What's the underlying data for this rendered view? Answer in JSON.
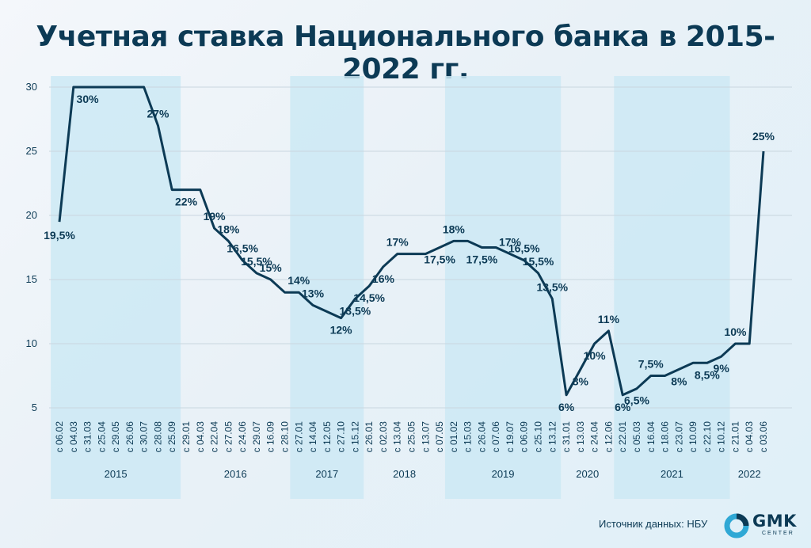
{
  "chart_data": {
    "type": "line",
    "title": "Учетная ставка Национального банка в 2015-2022 гг.",
    "ylim": [
      3,
      32
    ],
    "yticks": [
      5,
      10,
      15,
      20,
      25,
      30
    ],
    "grid": "horizontal",
    "points": [
      {
        "x": "с 06.02",
        "y": 19.5,
        "label": "19,5%"
      },
      {
        "x": "с 04.03",
        "y": 30,
        "label": ""
      },
      {
        "x": "с 31.03",
        "y": 30,
        "label": "30%"
      },
      {
        "x": "с 25.04",
        "y": 30,
        "label": ""
      },
      {
        "x": "с 29.05",
        "y": 30,
        "label": ""
      },
      {
        "x": "с 26.06",
        "y": 30,
        "label": ""
      },
      {
        "x": "с 30.07",
        "y": 30,
        "label": ""
      },
      {
        "x": "с 28.08",
        "y": 27,
        "label": "27%"
      },
      {
        "x": "с 25.09",
        "y": 22,
        "label": ""
      },
      {
        "x": "с 29.01",
        "y": 22,
        "label": "22%"
      },
      {
        "x": "с 04.03",
        "y": 22,
        "label": ""
      },
      {
        "x": "с 22.04",
        "y": 19,
        "label": "19%"
      },
      {
        "x": "с 27.05",
        "y": 18,
        "label": "18%"
      },
      {
        "x": "с 24.06",
        "y": 16.5,
        "label": "16,5%"
      },
      {
        "x": "с 29.07",
        "y": 15.5,
        "label": "15,5%"
      },
      {
        "x": "с 16.09",
        "y": 15,
        "label": "15%"
      },
      {
        "x": "с 28.10",
        "y": 14,
        "label": ""
      },
      {
        "x": "с 27.01",
        "y": 14,
        "label": "14%"
      },
      {
        "x": "с 14.04",
        "y": 13,
        "label": "13%"
      },
      {
        "x": "с 12.05",
        "y": 12.5,
        "label": ""
      },
      {
        "x": "с 27.10",
        "y": 12,
        "label": "12%"
      },
      {
        "x": "с 15.12",
        "y": 13.5,
        "label": "13,5%"
      },
      {
        "x": "с 26.01",
        "y": 14.5,
        "label": "14,5%"
      },
      {
        "x": "с 02.03",
        "y": 16,
        "label": "16%"
      },
      {
        "x": "с 13.04",
        "y": 17,
        "label": "17%"
      },
      {
        "x": "с 25.05",
        "y": 17,
        "label": ""
      },
      {
        "x": "с 13.07",
        "y": 17,
        "label": ""
      },
      {
        "x": "с 07.05",
        "y": 17.5,
        "label": "17,5%"
      },
      {
        "x": "с 01.02",
        "y": 18,
        "label": "18%"
      },
      {
        "x": "с 15.03",
        "y": 18,
        "label": ""
      },
      {
        "x": "с 26.04",
        "y": 17.5,
        "label": "17,5%"
      },
      {
        "x": "с 07.06",
        "y": 17.5,
        "label": ""
      },
      {
        "x": "с 19.07",
        "y": 17,
        "label": "17%"
      },
      {
        "x": "с 06.09",
        "y": 16.5,
        "label": "16,5%"
      },
      {
        "x": "с 25.10",
        "y": 15.5,
        "label": "15,5%"
      },
      {
        "x": "с 13.12",
        "y": 13.5,
        "label": "13,5%"
      },
      {
        "x": "с 31.01",
        "y": 6,
        "label": "6%"
      },
      {
        "x": "с 13.03",
        "y": 8,
        "label": ""
      },
      {
        "x": "с 24.04",
        "y": 10,
        "label": "10%"
      },
      {
        "x": "с 12.06",
        "y": 11,
        "label": "11%"
      },
      {
        "x": "с 22.01",
        "y": 6,
        "label": "6%"
      },
      {
        "x": "с 05.03",
        "y": 6.5,
        "label": "6,5%"
      },
      {
        "x": "с 16.04",
        "y": 7.5,
        "label": "7,5%"
      },
      {
        "x": "с 18.06",
        "y": 7.5,
        "label": ""
      },
      {
        "x": "с 23.07",
        "y": 8,
        "label": "8%"
      },
      {
        "x": "с 10.09",
        "y": 8.5,
        "label": ""
      },
      {
        "x": "с 22.10",
        "y": 8.5,
        "label": "8,5%"
      },
      {
        "x": "с 10.12",
        "y": 9,
        "label": "9%"
      },
      {
        "x": "с 21.01",
        "y": 10,
        "label": "10%"
      },
      {
        "x": "с 04.03",
        "y": 10,
        "label": ""
      },
      {
        "x": "с 03.06",
        "y": 25,
        "label": "25%"
      }
    ],
    "extra_labels": [
      {
        "label": "8%",
        "near_index": 37
      }
    ],
    "years": [
      {
        "label": "2015",
        "from": 0,
        "to": 8,
        "shaded": true
      },
      {
        "label": "2016",
        "from": 9,
        "to": 16,
        "shaded": false
      },
      {
        "label": "2017",
        "from": 17,
        "to": 21,
        "shaded": true
      },
      {
        "label": "2018",
        "from": 22,
        "to": 27,
        "shaded": false
      },
      {
        "label": "2019",
        "from": 28,
        "to": 35,
        "shaded": true
      },
      {
        "label": "2020",
        "from": 36,
        "to": 39,
        "shaded": false
      },
      {
        "label": "2021",
        "from": 40,
        "to": 47,
        "shaded": true
      },
      {
        "label": "2022",
        "from": 48,
        "to": 50,
        "shaded": false
      }
    ],
    "colors": {
      "line": "#0c3a55",
      "band": "#cde9f4",
      "grid": "#c9d6df",
      "text": "#0c3a55"
    }
  },
  "footer": {
    "source": "Источник данных: НБУ",
    "logo_text": "GMK",
    "logo_sub": "CENTER"
  }
}
